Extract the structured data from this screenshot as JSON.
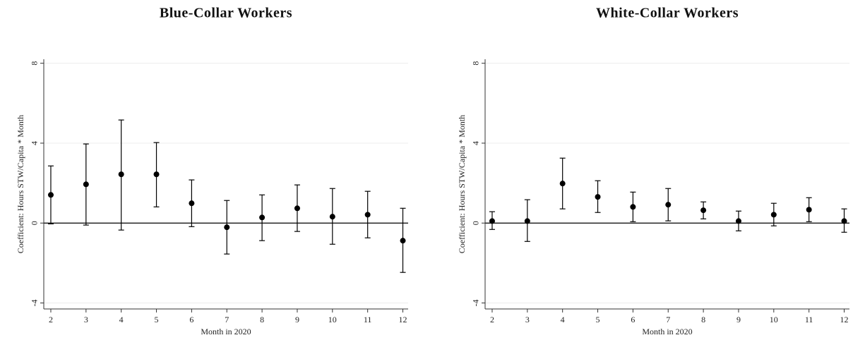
{
  "chart_data": [
    {
      "type": "errorbar",
      "title": "Blue-Collar Workers",
      "x_label": "Month in 2020",
      "y_label": "Coefficient: Hours STW/Capita * Month",
      "x": [
        2,
        3,
        4,
        5,
        6,
        7,
        8,
        9,
        10,
        11,
        12
      ],
      "values": [
        1.41,
        1.94,
        2.44,
        2.44,
        0.99,
        -0.21,
        0.28,
        0.74,
        0.32,
        0.42,
        -0.88
      ],
      "lower": [
        -0.04,
        -0.1,
        -0.35,
        0.81,
        -0.18,
        -1.55,
        -0.88,
        -0.42,
        -1.06,
        -0.74,
        -2.47
      ],
      "upper": [
        2.86,
        3.96,
        5.16,
        4.03,
        2.16,
        1.13,
        1.41,
        1.91,
        1.73,
        1.59,
        0.74
      ],
      "color": "#000000",
      "xlim": [
        1.8,
        12.15
      ],
      "xticks": [
        2,
        3,
        4,
        5,
        6,
        7,
        8,
        9,
        10,
        11,
        12
      ],
      "ylim": [
        -4.3,
        8.2
      ],
      "yticks": [
        -4,
        0,
        4,
        8
      ],
      "grid": true,
      "yline": 0
    },
    {
      "type": "errorbar",
      "title": "White-Collar Workers",
      "x_label": "Month in 2020",
      "y_label": "Coefficient: Hours STW/Capita * Month",
      "x": [
        2,
        3,
        4,
        5,
        6,
        7,
        8,
        9,
        10,
        11,
        12
      ],
      "values": [
        0.1,
        0.1,
        1.98,
        1.31,
        0.81,
        0.92,
        0.64,
        0.1,
        0.42,
        0.67,
        0.1
      ],
      "lower": [
        -0.32,
        -0.92,
        0.71,
        0.53,
        0.07,
        0.11,
        0.21,
        -0.39,
        -0.14,
        0.07,
        -0.46
      ],
      "upper": [
        0.57,
        1.17,
        3.25,
        2.12,
        1.55,
        1.73,
        1.06,
        0.6,
        0.99,
        1.27,
        0.71
      ],
      "color": "#000000",
      "xlim": [
        1.8,
        12.15
      ],
      "xticks": [
        2,
        3,
        4,
        5,
        6,
        7,
        8,
        9,
        10,
        11,
        12
      ],
      "ylim": [
        -4.3,
        8.2
      ],
      "yticks": [
        -4,
        0,
        4,
        8
      ],
      "grid": true,
      "yline": 0
    }
  ]
}
